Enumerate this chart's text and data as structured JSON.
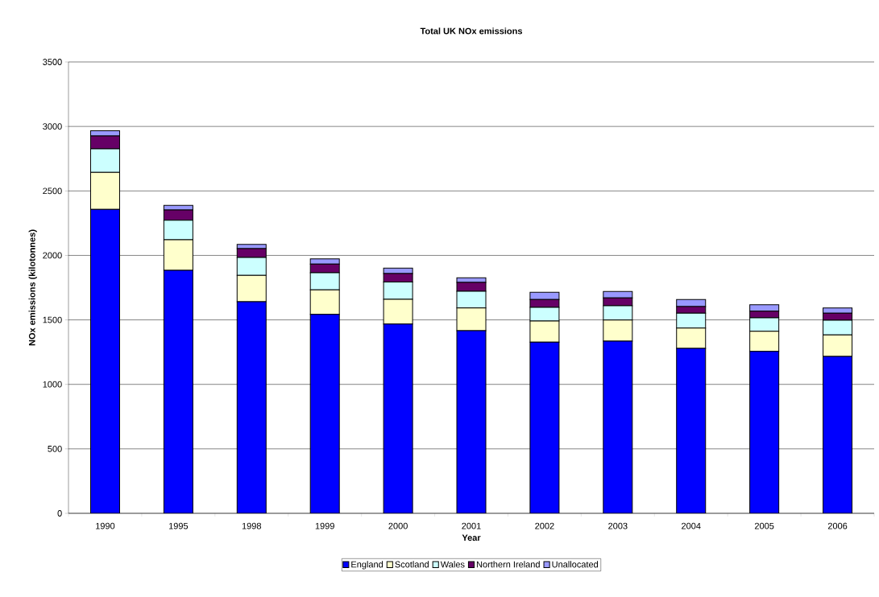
{
  "chart_data": {
    "type": "bar",
    "stacked": true,
    "title": "Total UK NOx emissions",
    "xlabel": "Year",
    "ylabel": "NOx emissions (kilotonnes)",
    "categories": [
      "1990",
      "1995",
      "1998",
      "1999",
      "2000",
      "2001",
      "2002",
      "2003",
      "2004",
      "2005",
      "2006"
    ],
    "series": [
      {
        "name": "England",
        "color": "#0000ff",
        "values": [
          2356,
          1884,
          1641,
          1543,
          1468,
          1416,
          1327,
          1335,
          1279,
          1256,
          1217
        ]
      },
      {
        "name": "Scotland",
        "color": "#ffffcc",
        "values": [
          287,
          237,
          204,
          190,
          192,
          177,
          164,
          164,
          158,
          156,
          166
        ]
      },
      {
        "name": "Wales",
        "color": "#ccffff",
        "values": [
          183,
          152,
          139,
          133,
          133,
          129,
          106,
          111,
          115,
          104,
          114
        ]
      },
      {
        "name": "Northern Ireland",
        "color": "#660066",
        "values": [
          100,
          79,
          69,
          66,
          66,
          69,
          61,
          60,
          51,
          52,
          55
        ]
      },
      {
        "name": "Unallocated",
        "color": "#9999ff",
        "values": [
          40,
          36,
          33,
          41,
          42,
          35,
          56,
          50,
          55,
          50,
          41
        ]
      }
    ],
    "ylim": [
      0,
      3500
    ],
    "yticks": [
      0,
      500,
      1000,
      1500,
      2000,
      2500,
      3000,
      3500
    ],
    "grid": "y",
    "legend": "bottom"
  }
}
